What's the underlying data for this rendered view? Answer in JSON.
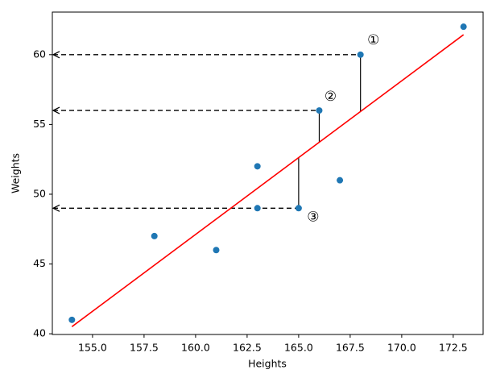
{
  "chart_data": {
    "type": "scatter",
    "x_label": "Heights",
    "y_label": "Weights",
    "x": [
      154,
      158,
      161,
      163,
      163,
      165,
      166,
      167,
      168,
      173
    ],
    "values": [
      41,
      47,
      46,
      52,
      49,
      49,
      56,
      51,
      60,
      62
    ],
    "color": "#1f77b4",
    "line": {
      "x": [
        154,
        173
      ],
      "values": [
        40.51,
        61.43
      ],
      "color": "#ff0000"
    },
    "annotations": [
      "①",
      "②",
      "③"
    ],
    "xlim": [
      153.05,
      173.95
    ],
    "xticks": [
      {
        "value": 155,
        "label": "155.0"
      },
      {
        "value": 157.5,
        "label": "157.5"
      },
      {
        "value": 160,
        "label": "160.0"
      },
      {
        "value": 162.5,
        "label": "162.5"
      },
      {
        "value": 165,
        "label": "165.0"
      },
      {
        "value": 167.5,
        "label": "167.5"
      },
      {
        "value": 170,
        "label": "170.0"
      },
      {
        "value": 172.5,
        "label": "172.5"
      }
    ],
    "ylim": [
      39.95,
      63.05
    ],
    "yticks": [
      40,
      45,
      50,
      55,
      60
    ]
  }
}
